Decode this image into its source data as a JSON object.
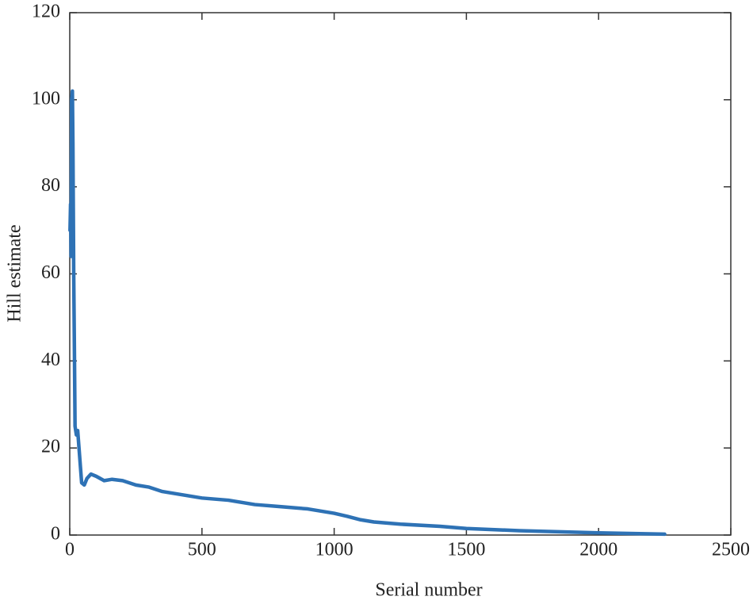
{
  "chart_data": {
    "type": "line",
    "xlabel": "Serial number",
    "ylabel": "Hill estimate",
    "x": [
      1,
      3,
      5,
      7,
      10,
      12,
      15,
      18,
      20,
      25,
      30,
      35,
      40,
      45,
      55,
      65,
      80,
      100,
      130,
      160,
      200,
      250,
      300,
      350,
      400,
      450,
      500,
      600,
      650,
      700,
      800,
      900,
      1000,
      1050,
      1100,
      1150,
      1250,
      1400,
      1500,
      1700,
      2000,
      2250
    ],
    "values": [
      70,
      76,
      64,
      100,
      102,
      90,
      60,
      40,
      25,
      23,
      24,
      20,
      16,
      12,
      11.5,
      13,
      14,
      13.5,
      12.5,
      12.8,
      12.5,
      11.5,
      11,
      10,
      9.5,
      9,
      8.5,
      8,
      7.5,
      7,
      6.5,
      6,
      5,
      4.3,
      3.5,
      3,
      2.5,
      2,
      1.5,
      1,
      0.5,
      0.2
    ],
    "color": "#2e72b5",
    "xlim": [
      0,
      2500
    ],
    "xticks": [
      0,
      500,
      1000,
      1500,
      2000,
      2500
    ],
    "ylim": [
      0,
      120
    ],
    "yticks": [
      0,
      20,
      40,
      60,
      80,
      100,
      120
    ],
    "grid": false
  }
}
